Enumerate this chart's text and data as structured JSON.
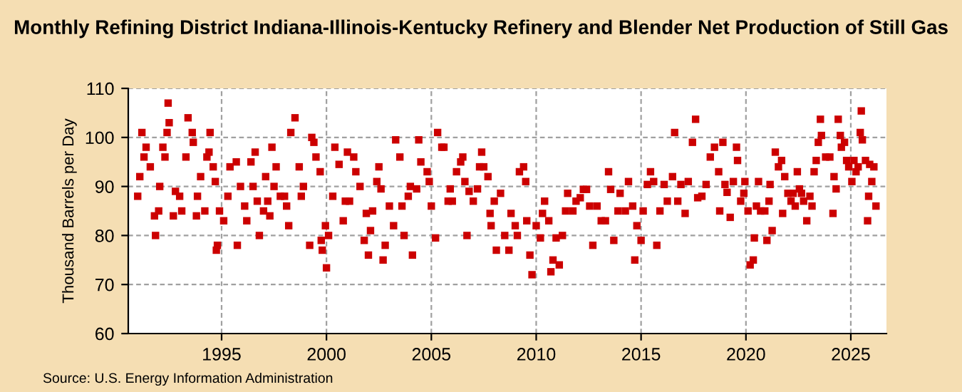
{
  "chart_data": {
    "type": "scatter",
    "title": "Monthly Refining District Indiana-Illinois-Kentucky Refinery and Blender Net Production of Still Gas",
    "ylabel": "Thousand Barrels per Day",
    "annotations": [
      "Source: U.S. Energy Information Administration"
    ],
    "x": [
      1991.0,
      1991.1,
      1991.2,
      1991.3,
      1991.4,
      1991.6,
      1991.8,
      1991.85,
      1992.0,
      1992.05,
      1992.2,
      1992.3,
      1992.4,
      1992.45,
      1992.5,
      1992.7,
      1992.8,
      1993.0,
      1993.1,
      1993.3,
      1993.4,
      1993.6,
      1993.65,
      1993.8,
      1993.85,
      1994.0,
      1994.2,
      1994.3,
      1994.4,
      1994.45,
      1994.6,
      1994.7,
      1994.75,
      1994.8,
      1994.9,
      1995.1,
      1995.3,
      1995.4,
      1995.7,
      1995.75,
      1995.9,
      1996.1,
      1996.2,
      1996.4,
      1996.5,
      1996.6,
      1996.7,
      1996.8,
      1997.0,
      1997.1,
      1997.2,
      1997.3,
      1997.4,
      1997.5,
      1997.6,
      1997.8,
      1998.0,
      1998.1,
      1998.2,
      1998.3,
      1998.5,
      1998.7,
      1998.8,
      1998.9,
      1999.2,
      1999.3,
      1999.4,
      1999.5,
      1999.7,
      1999.75,
      1999.8,
      1999.95,
      2000.0,
      2000.1,
      2000.3,
      2000.4,
      2000.6,
      2000.8,
      2000.9,
      2001.0,
      2001.1,
      2001.3,
      2001.4,
      2001.6,
      2001.8,
      2001.9,
      2002.0,
      2002.1,
      2002.2,
      2002.4,
      2002.5,
      2002.6,
      2002.7,
      2002.8,
      2003.0,
      2003.2,
      2003.3,
      2003.5,
      2003.6,
      2003.7,
      2003.9,
      2004.0,
      2004.1,
      2004.3,
      2004.4,
      2004.5,
      2004.8,
      2004.9,
      2005.0,
      2005.2,
      2005.3,
      2005.5,
      2005.6,
      2005.8,
      2005.9,
      2006.0,
      2006.2,
      2006.4,
      2006.5,
      2006.6,
      2006.7,
      2006.8,
      2007.0,
      2007.2,
      2007.3,
      2007.4,
      2007.5,
      2007.7,
      2007.8,
      2007.85,
      2008.0,
      2008.1,
      2008.3,
      2008.5,
      2008.7,
      2008.8,
      2009.0,
      2009.1,
      2009.2,
      2009.4,
      2009.5,
      2009.55,
      2009.7,
      2009.8,
      2010.0,
      2010.2,
      2010.3,
      2010.4,
      2010.6,
      2010.7,
      2010.8,
      2010.95,
      2011.1,
      2011.25,
      2011.4,
      2011.5,
      2011.75,
      2011.9,
      2012.1,
      2012.25,
      2012.4,
      2012.55,
      2012.7,
      2012.9,
      2013.1,
      2013.3,
      2013.45,
      2013.55,
      2013.7,
      2013.9,
      2014.0,
      2014.25,
      2014.4,
      2014.6,
      2014.7,
      2014.8,
      2015.0,
      2015.1,
      2015.3,
      2015.45,
      2015.6,
      2015.75,
      2015.9,
      2016.1,
      2016.25,
      2016.5,
      2016.6,
      2016.75,
      2016.9,
      2017.1,
      2017.25,
      2017.45,
      2017.6,
      2017.7,
      2017.9,
      2018.1,
      2018.3,
      2018.5,
      2018.7,
      2018.75,
      2018.9,
      2019.0,
      2019.1,
      2019.25,
      2019.4,
      2019.55,
      2019.6,
      2019.75,
      2019.9,
      2019.95,
      2020.1,
      2020.2,
      2020.35,
      2020.4,
      2020.5,
      2020.6,
      2020.7,
      2020.9,
      2021.0,
      2021.1,
      2021.15,
      2021.25,
      2021.4,
      2021.55,
      2021.7,
      2021.75,
      2021.85,
      2022.0,
      2022.15,
      2022.25,
      2022.35,
      2022.45,
      2022.55,
      2022.65,
      2022.75,
      2022.9,
      2023.05,
      2023.15,
      2023.25,
      2023.35,
      2023.45,
      2023.55,
      2023.6,
      2023.8,
      2024.0,
      2024.15,
      2024.2,
      2024.3,
      2024.4,
      2024.5,
      2024.55,
      2024.7,
      2024.8,
      2024.9,
      2025.05,
      2025.15,
      2025.25,
      2025.35,
      2025.45,
      2025.5,
      2025.55,
      2025.7,
      2025.8,
      2025.85,
      2025.9,
      2026.0,
      2026.1,
      2026.2
    ],
    "values": [
      88,
      92,
      101,
      96,
      98,
      94,
      84,
      80,
      85,
      90,
      98,
      96,
      101,
      107,
      103,
      84,
      89,
      88,
      85,
      96,
      104,
      101,
      99,
      84,
      88,
      92,
      85,
      96,
      97,
      101,
      94,
      91,
      77,
      78,
      85,
      83,
      88,
      94,
      95,
      78,
      90,
      86,
      83,
      95,
      90,
      97,
      87,
      80,
      85,
      92,
      87,
      84,
      98,
      90,
      94,
      88,
      88,
      86,
      82,
      101,
      104,
      94,
      88,
      90,
      78,
      100,
      99,
      96,
      93,
      79,
      77,
      82,
      73.4,
      80,
      88,
      98,
      94.5,
      83,
      87,
      97,
      87,
      96,
      93,
      90,
      79,
      84.5,
      76,
      81,
      85,
      91,
      94,
      89.5,
      75,
      78,
      86,
      82,
      99.5,
      96,
      86,
      80,
      88,
      90,
      76,
      89.5,
      99.5,
      95,
      93,
      91,
      86,
      79.5,
      101,
      98,
      98,
      87,
      89.5,
      87,
      93,
      95,
      96,
      91,
      80,
      89,
      87,
      89.5,
      94,
      97,
      94,
      92,
      84.5,
      82,
      87,
      77,
      88.6,
      80,
      77,
      84.5,
      82,
      80,
      93,
      94,
      91,
      83,
      76,
      72,
      82,
      79.5,
      84.5,
      87,
      83,
      72.6,
      75,
      79.5,
      74,
      80,
      85,
      88.6,
      85,
      87,
      87.7,
      89.4,
      89.4,
      86,
      78,
      86,
      83,
      83,
      93,
      89.4,
      79,
      85,
      88.6,
      85,
      91,
      86,
      75,
      82,
      79,
      85,
      90.4,
      93,
      91,
      78,
      85,
      90.4,
      87,
      92,
      101,
      87,
      90.4,
      84.5,
      91,
      99,
      103.7,
      87.7,
      88,
      90.4,
      96,
      98,
      93,
      85,
      99,
      90.4,
      88.8,
      83.7,
      91,
      98,
      95.3,
      87,
      88.6,
      91,
      85,
      74,
      75,
      79.5,
      86,
      91,
      85,
      85,
      79,
      87,
      90.4,
      81,
      97,
      94,
      95.3,
      84.5,
      92,
      88.6,
      87,
      88.6,
      86,
      93,
      89.5,
      88.6,
      87,
      83,
      88,
      86,
      93,
      95.3,
      99,
      103.7,
      100.4,
      96,
      96,
      84.5,
      92,
      89.5,
      103.7,
      100.4,
      98,
      99,
      95.3,
      94,
      91,
      95.3,
      93,
      94,
      101,
      105.4,
      99.5,
      95.3,
      83,
      88,
      94.5,
      91,
      94,
      86
    ],
    "color": "#cc0000",
    "marker": "square",
    "xlim": [
      1990.55,
      2026.7
    ],
    "ylim": [
      60,
      110
    ],
    "xticks": [
      1995,
      2000,
      2005,
      2010,
      2015,
      2020,
      2025
    ],
    "yticks": [
      60,
      70,
      80,
      90,
      100,
      110
    ],
    "grid": true
  }
}
